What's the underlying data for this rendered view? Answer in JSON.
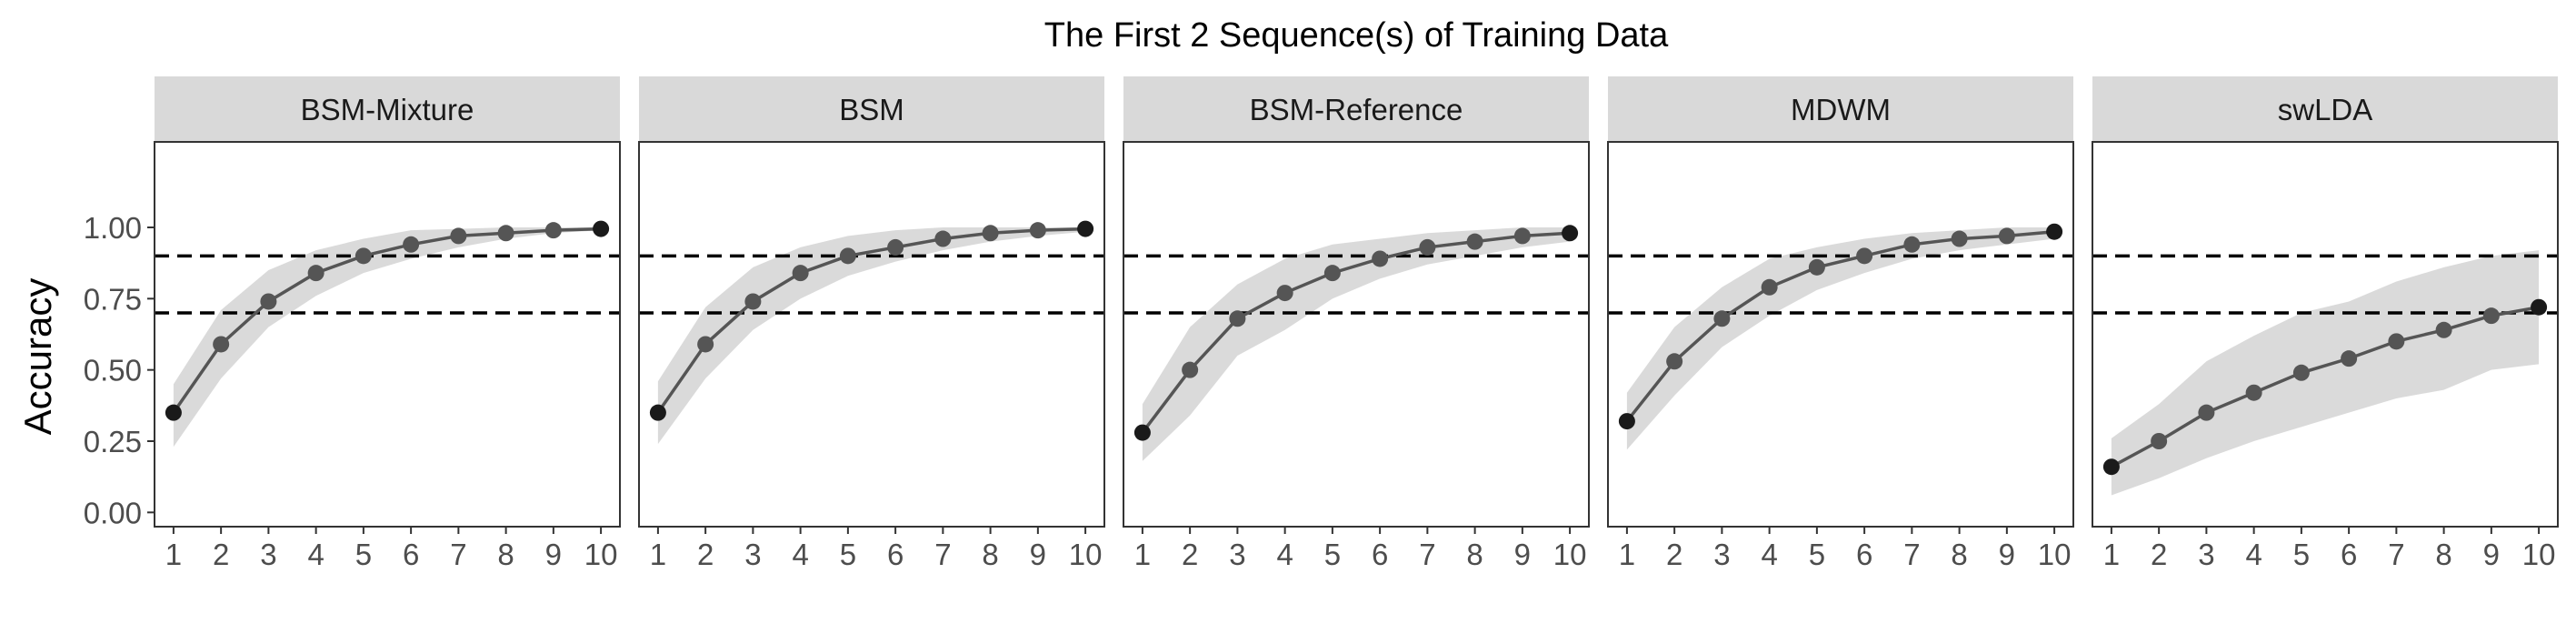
{
  "title": "The First 2 Sequence(s) of Training Data",
  "ylabel": "Accuracy",
  "xlabel": "",
  "chart_data": {
    "type": "line",
    "title": "The First 2 Sequence(s) of Training Data",
    "xlabel": "",
    "ylabel": "Accuracy",
    "x": [
      1,
      2,
      3,
      4,
      5,
      6,
      7,
      8,
      9,
      10
    ],
    "x_ticks": [
      "1",
      "2",
      "3",
      "4",
      "5",
      "6",
      "7",
      "8",
      "9",
      "10"
    ],
    "y_ticks": [
      "0.00",
      "0.25",
      "0.50",
      "0.75",
      "1.00"
    ],
    "ylim": [
      -0.05,
      1.3
    ],
    "reference_lines": [
      0.7,
      0.9
    ],
    "grid": false,
    "panels": [
      {
        "name": "BSM-Mixture",
        "values": [
          0.35,
          0.59,
          0.74,
          0.84,
          0.9,
          0.94,
          0.97,
          0.98,
          0.99,
          0.995
        ],
        "lower": [
          0.23,
          0.47,
          0.65,
          0.76,
          0.84,
          0.89,
          0.93,
          0.96,
          0.98,
          0.99
        ],
        "upper": [
          0.45,
          0.71,
          0.85,
          0.92,
          0.96,
          0.99,
          0.995,
          1.0,
          1.0,
          1.0
        ]
      },
      {
        "name": "BSM",
        "values": [
          0.35,
          0.59,
          0.74,
          0.84,
          0.9,
          0.93,
          0.96,
          0.98,
          0.99,
          0.995
        ],
        "lower": [
          0.24,
          0.47,
          0.64,
          0.75,
          0.83,
          0.88,
          0.92,
          0.95,
          0.97,
          0.985
        ],
        "upper": [
          0.46,
          0.72,
          0.86,
          0.93,
          0.97,
          0.99,
          1.0,
          1.0,
          1.0,
          1.0
        ]
      },
      {
        "name": "BSM-Reference",
        "values": [
          0.28,
          0.5,
          0.68,
          0.77,
          0.84,
          0.89,
          0.93,
          0.95,
          0.97,
          0.98
        ],
        "lower": [
          0.18,
          0.34,
          0.55,
          0.64,
          0.75,
          0.82,
          0.87,
          0.9,
          0.93,
          0.95
        ],
        "upper": [
          0.38,
          0.65,
          0.8,
          0.89,
          0.94,
          0.96,
          0.98,
          0.99,
          1.0,
          1.0
        ]
      },
      {
        "name": "MDWM",
        "values": [
          0.32,
          0.53,
          0.68,
          0.79,
          0.86,
          0.9,
          0.94,
          0.96,
          0.97,
          0.985
        ],
        "lower": [
          0.22,
          0.41,
          0.58,
          0.69,
          0.78,
          0.84,
          0.89,
          0.92,
          0.94,
          0.96
        ],
        "upper": [
          0.42,
          0.65,
          0.79,
          0.89,
          0.93,
          0.96,
          0.98,
          0.99,
          1.0,
          1.0
        ]
      },
      {
        "name": "swLDA",
        "values": [
          0.16,
          0.25,
          0.35,
          0.42,
          0.49,
          0.54,
          0.6,
          0.64,
          0.69,
          0.72
        ],
        "lower": [
          0.06,
          0.12,
          0.19,
          0.25,
          0.3,
          0.35,
          0.4,
          0.43,
          0.5,
          0.52
        ],
        "upper": [
          0.26,
          0.38,
          0.53,
          0.62,
          0.7,
          0.74,
          0.81,
          0.86,
          0.9,
          0.92
        ]
      }
    ]
  }
}
